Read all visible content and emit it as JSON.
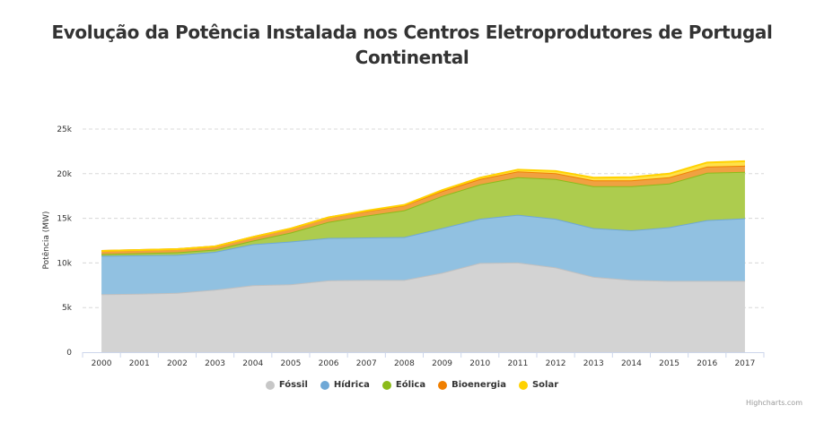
{
  "chart_data": {
    "type": "area",
    "stacked": true,
    "title": "Evolução da Potência Instalada nos Centros Eletroprodutores de Portugal Continental",
    "xlabel": "",
    "ylabel": "Potência (MW)",
    "ylim": [
      0,
      25000
    ],
    "yticks": [
      {
        "value": 0,
        "label": "0"
      },
      {
        "value": 5000,
        "label": "5k"
      },
      {
        "value": 10000,
        "label": "10k"
      },
      {
        "value": 15000,
        "label": "15k"
      },
      {
        "value": 20000,
        "label": "20k"
      },
      {
        "value": 25000,
        "label": "25k"
      }
    ],
    "grid": true,
    "legend_position": "bottom-center",
    "categories": [
      "2000",
      "2001",
      "2002",
      "2003",
      "2004",
      "2005",
      "2006",
      "2007",
      "2008",
      "2009",
      "2010",
      "2011",
      "2012",
      "2013",
      "2014",
      "2015",
      "2016",
      "2017"
    ],
    "series": [
      {
        "name": "Fóssil",
        "color": "#d3d3d3",
        "line": "#c0c0c0",
        "legend_color": "#c7c7c7",
        "values": [
          6500,
          6550,
          6650,
          7000,
          7500,
          7600,
          8050,
          8100,
          8100,
          8900,
          10000,
          10050,
          9500,
          8450,
          8100,
          8000,
          8000,
          8000
        ]
      },
      {
        "name": "Hídrica",
        "color": "#91c1e1",
        "line": "#6fa8d6",
        "legend_color": "#6fa8d6",
        "values": [
          4300,
          4300,
          4250,
          4250,
          4600,
          4800,
          4750,
          4750,
          4800,
          5000,
          4950,
          5350,
          5450,
          5450,
          5550,
          6000,
          6800,
          7000
        ]
      },
      {
        "name": "Eólica",
        "color": "#adcc4e",
        "line": "#8cbb1a",
        "legend_color": "#8cbb1a",
        "values": [
          200,
          250,
          300,
          250,
          400,
          1000,
          1800,
          2450,
          3000,
          3600,
          3850,
          4200,
          4450,
          4700,
          4950,
          4900,
          5300,
          5200
        ]
      },
      {
        "name": "Bioenergia",
        "color": "#f0a141",
        "line": "#f07f00",
        "legend_color": "#f07f00",
        "values": [
          350,
          350,
          350,
          350,
          400,
          450,
          500,
          500,
          550,
          550,
          600,
          650,
          650,
          650,
          650,
          700,
          700,
          700
        ]
      },
      {
        "name": "Solar",
        "color": "#ffe14a",
        "line": "#ffd200",
        "legend_color": "#ffd200",
        "values": [
          0,
          0,
          0,
          0,
          0,
          0,
          0,
          50,
          50,
          100,
          150,
          200,
          250,
          300,
          350,
          400,
          450,
          500
        ]
      }
    ],
    "credits": "Highcharts.com"
  }
}
